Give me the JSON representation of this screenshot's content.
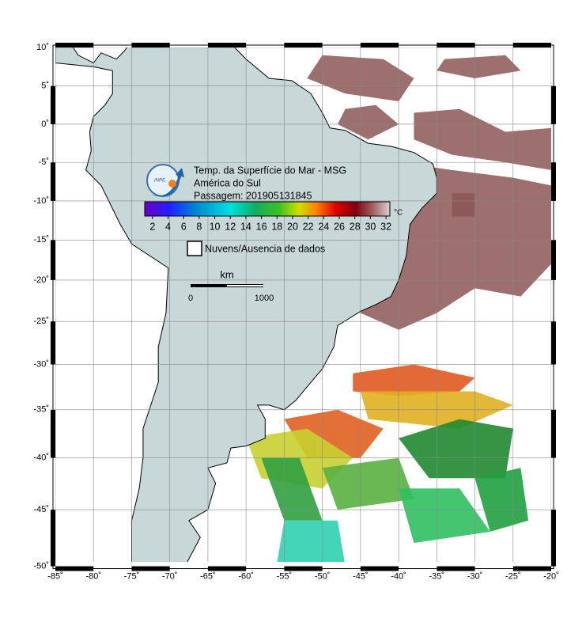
{
  "map": {
    "title_lines": [
      "Temp. da Superfície do Mar - MSG",
      "América do Sul",
      "Passagem: 201905131845"
    ],
    "logo_text": "INPE",
    "xlim": [
      -85,
      -20
    ],
    "ylim": [
      -50,
      10
    ],
    "xticks": [
      {
        "value": -85,
        "label": "-85˚"
      },
      {
        "value": -80,
        "label": "-80˚"
      },
      {
        "value": -75,
        "label": "-75˚"
      },
      {
        "value": -70,
        "label": "-70˚"
      },
      {
        "value": -65,
        "label": "-65˚"
      },
      {
        "value": -60,
        "label": "-60˚"
      },
      {
        "value": -55,
        "label": "-55˚"
      },
      {
        "value": -50,
        "label": "-50˚"
      },
      {
        "value": -45,
        "label": "-45˚"
      },
      {
        "value": -40,
        "label": "-40˚"
      },
      {
        "value": -35,
        "label": "-35˚"
      },
      {
        "value": -30,
        "label": "-30˚"
      },
      {
        "value": -25,
        "label": "-25˚"
      },
      {
        "value": -20,
        "label": "-20˚"
      }
    ],
    "yticks": [
      {
        "value": 10,
        "label": "10˚"
      },
      {
        "value": 5,
        "label": "5˚"
      },
      {
        "value": 0,
        "label": "0˚"
      },
      {
        "value": -5,
        "label": "-5˚"
      },
      {
        "value": -10,
        "label": "-10˚"
      },
      {
        "value": -15,
        "label": "-15˚"
      },
      {
        "value": -20,
        "label": "-20˚"
      },
      {
        "value": -25,
        "label": "-25˚"
      },
      {
        "value": -30,
        "label": "-30˚"
      },
      {
        "value": -35,
        "label": "-35˚"
      },
      {
        "value": -40,
        "label": "-40˚"
      },
      {
        "value": -45,
        "label": "-45˚"
      },
      {
        "value": -50,
        "label": "-50˚"
      }
    ],
    "colorbar": {
      "lim": [
        1,
        32.5
      ],
      "ticks": [
        2,
        4,
        6,
        8,
        10,
        12,
        14,
        16,
        18,
        20,
        22,
        24,
        26,
        28,
        30,
        32
      ],
      "unit": "°C"
    },
    "legend_label": "Nuvens/Ausencia de dados",
    "scale": {
      "unit": "km",
      "labels": [
        "0",
        "1000"
      ]
    }
  }
}
